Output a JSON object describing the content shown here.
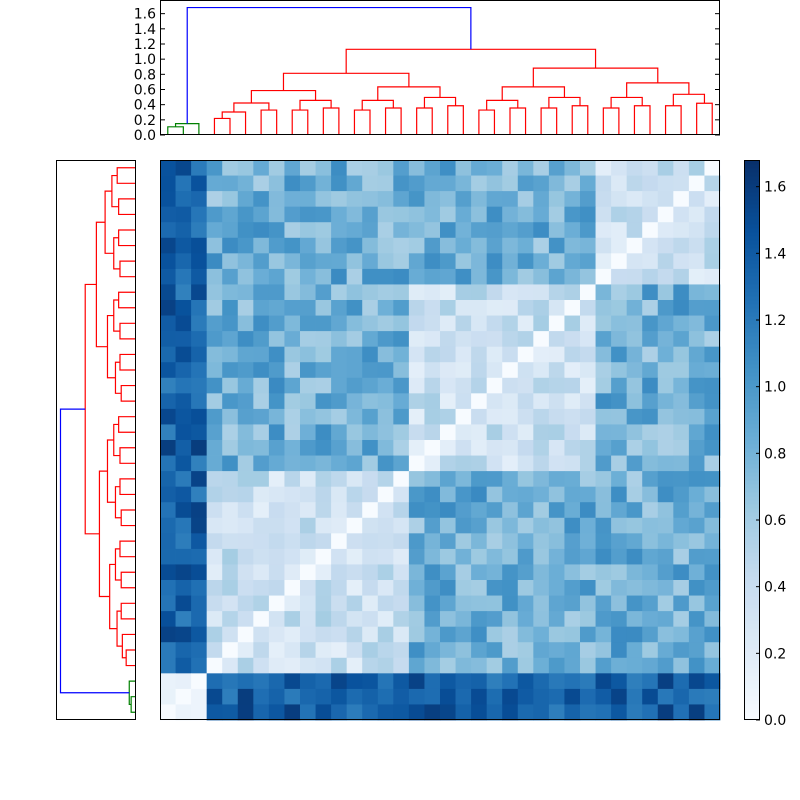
{
  "chart_data": {
    "type": "heatmap",
    "title": "",
    "xlabel": "",
    "ylabel": "",
    "colormap": "Blues",
    "value_range": [
      0,
      1.68
    ],
    "cell_counts": {
      "rows": 36,
      "cols": 36
    },
    "top_dendrogram": {
      "ylim": [
        0,
        1.78
      ],
      "yticks": [
        "0.0",
        "0.2",
        "0.4",
        "0.6",
        "0.8",
        "1.0",
        "1.2",
        "1.4",
        "1.6"
      ],
      "link_colors": {
        "root": "#0000ff",
        "cluster_a": "#008000",
        "cluster_b": "#ff0000"
      },
      "root_height": 1.68,
      "cluster_a_height": 0.15,
      "cluster_b_height": 1.13
    },
    "left_dendrogram": {
      "link_colors": {
        "root": "#0000ff",
        "cluster_a": "#008000",
        "cluster_b": "#ff0000"
      }
    },
    "colorbar": {
      "ticks": [
        "0.0",
        "0.2",
        "0.4",
        "0.6",
        "0.8",
        "1.0",
        "1.2",
        "1.4",
        "1.6"
      ],
      "range": [
        0,
        1.68
      ]
    }
  }
}
